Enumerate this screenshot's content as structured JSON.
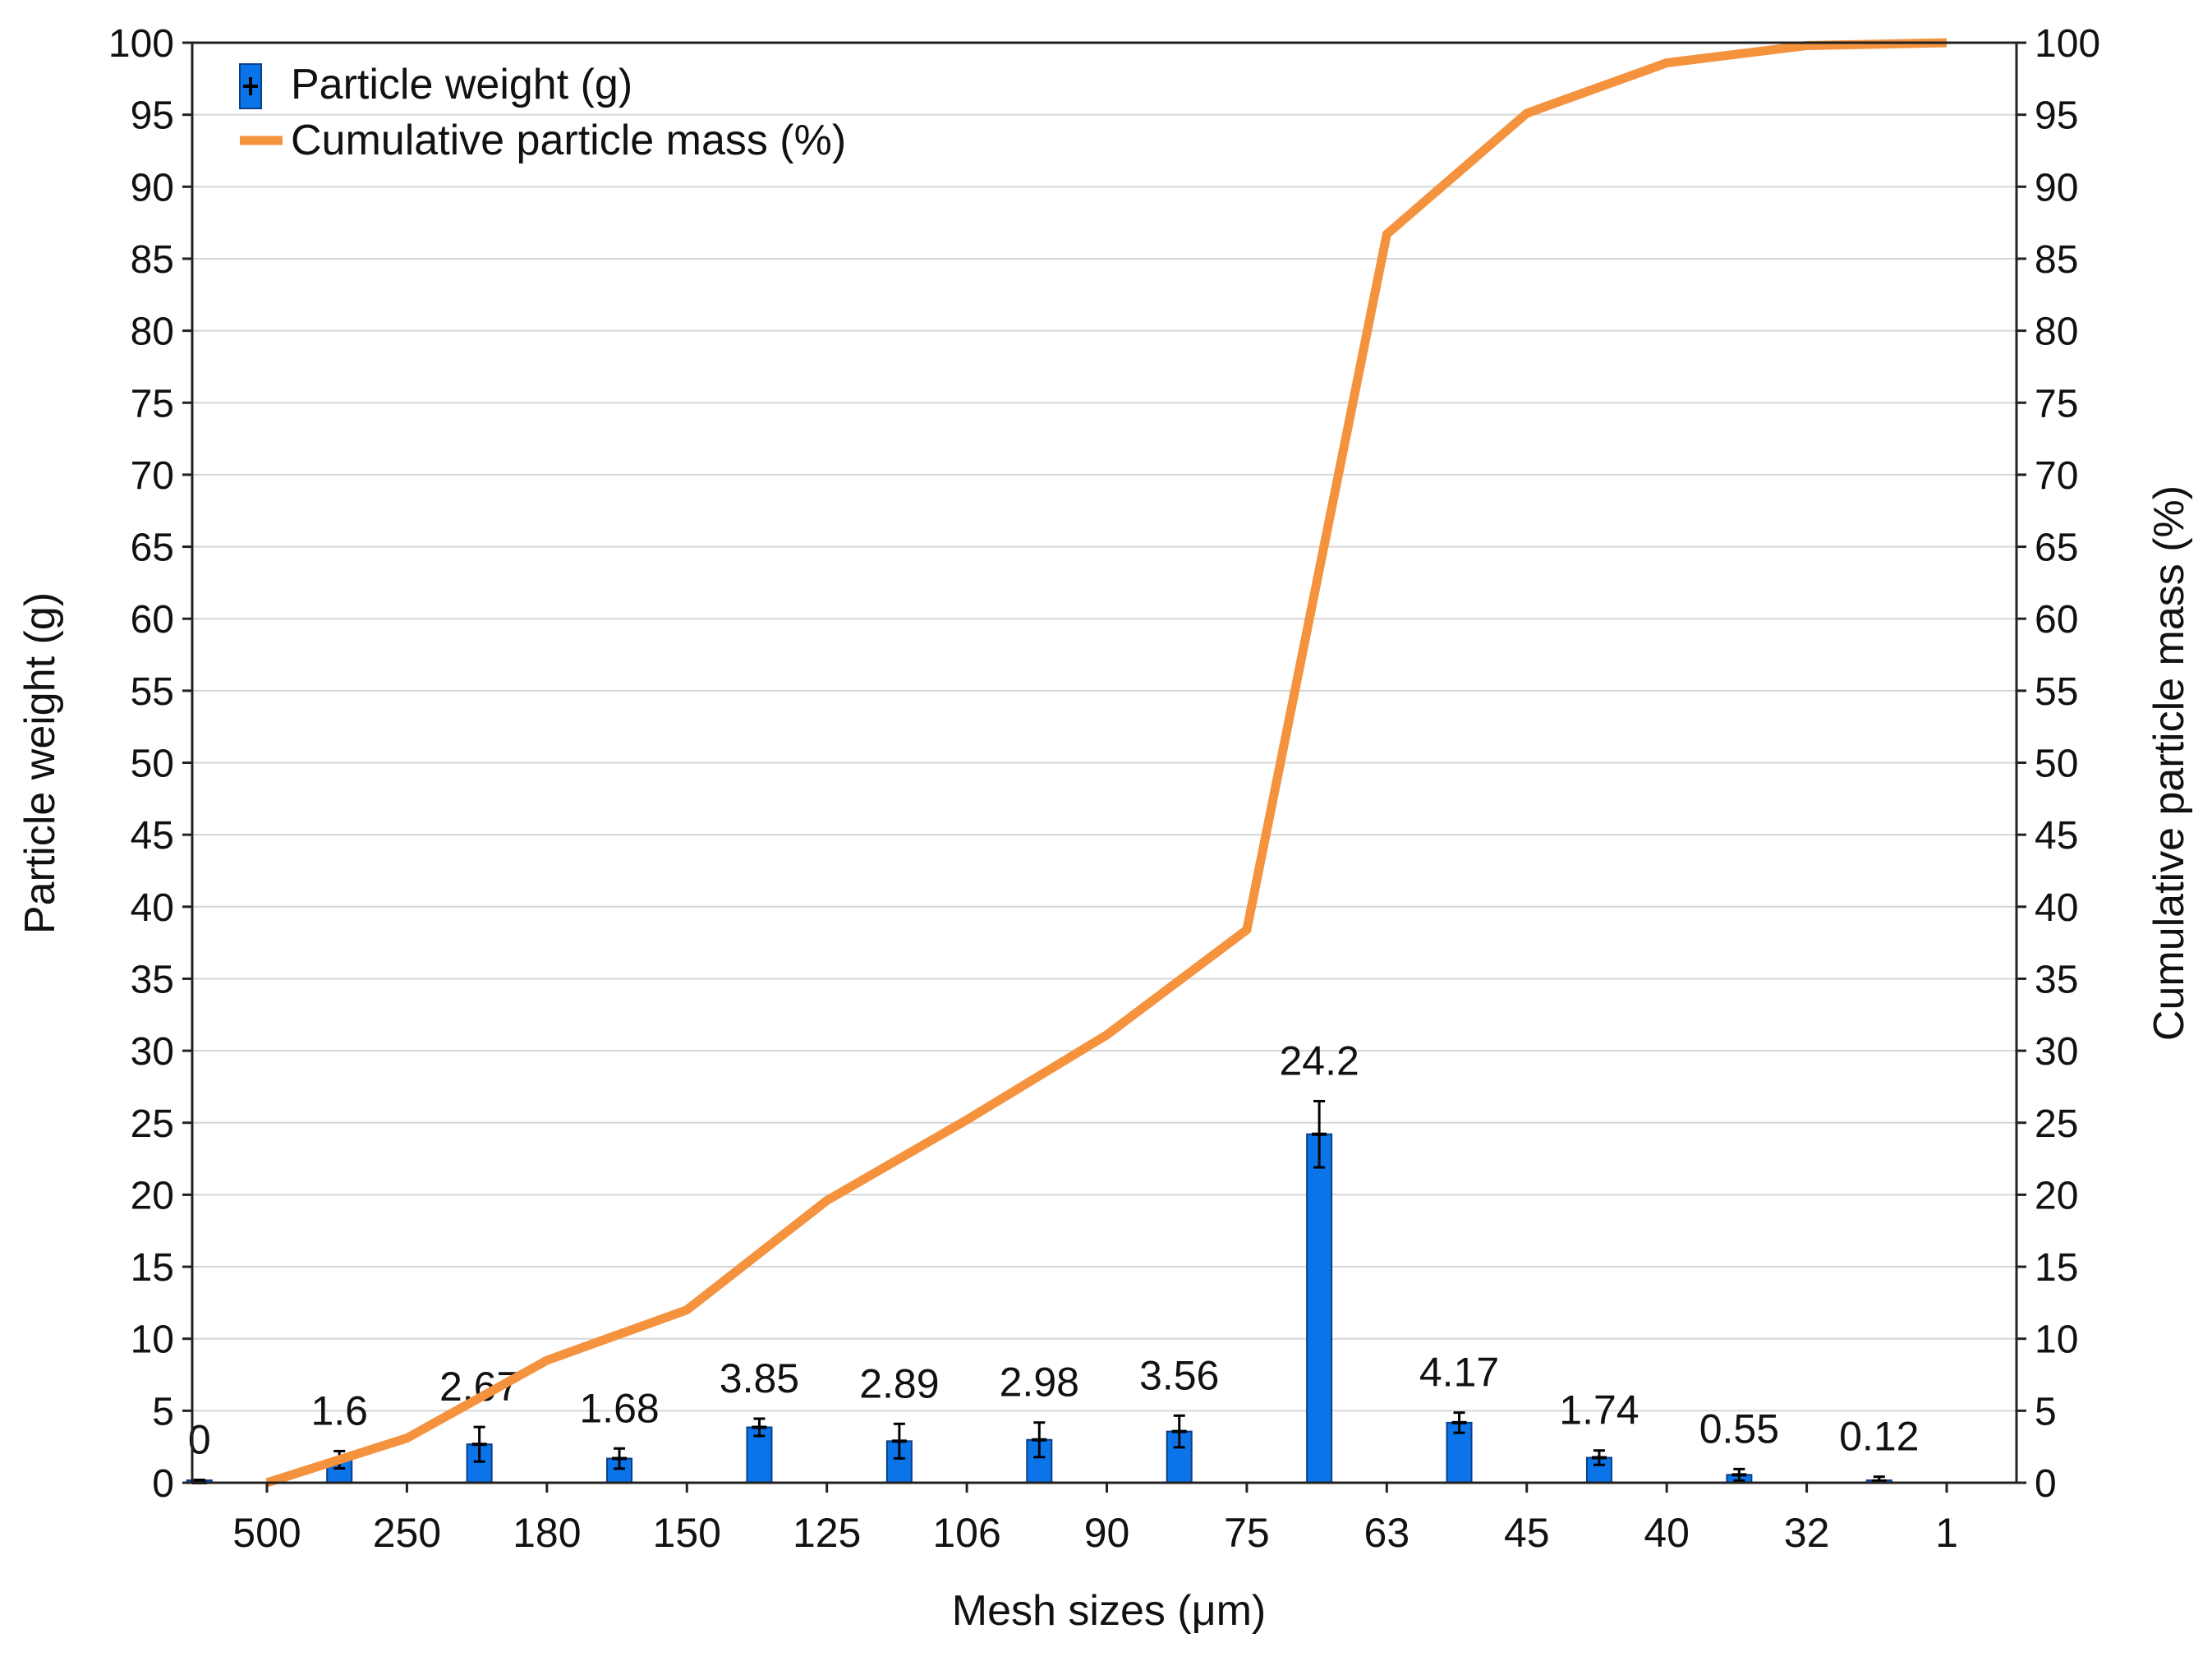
{
  "chart_data": {
    "type": "bar+line",
    "title": "",
    "xlabel": "Mesh sizes (μm)",
    "ylabel": "Particle weight (g)",
    "y2label": "Cumulative particle mass (%)",
    "categories": [
      "500",
      "250",
      "180",
      "150",
      "125",
      "106",
      "90",
      "75",
      "63",
      "45",
      "40",
      "32",
      "1"
    ],
    "ylim": [
      0,
      100
    ],
    "y2lim": [
      0,
      100
    ],
    "yticks": [
      0,
      5,
      10,
      15,
      20,
      25,
      30,
      35,
      40,
      45,
      50,
      55,
      60,
      65,
      70,
      75,
      80,
      85,
      90,
      95,
      100
    ],
    "grid": true,
    "legend_position": "top-left",
    "series": [
      {
        "name": "Particle weight (g)",
        "type": "bar",
        "axis": "left",
        "color": "#0a74e8",
        "values": [
          0,
          1.6,
          2.67,
          1.68,
          3.85,
          2.89,
          2.98,
          3.56,
          24.2,
          4.17,
          1.74,
          0.55,
          0.12
        ],
        "labels": [
          "0",
          "1.6",
          "2.67",
          "1.68",
          "3.85",
          "2.89",
          "2.98",
          "3.56",
          "24.2",
          "4.17",
          "1.74",
          "0.55",
          "0.12"
        ],
        "errors": [
          0.2,
          0.6,
          1.2,
          0.7,
          0.6,
          1.2,
          1.2,
          1.1,
          2.3,
          0.7,
          0.5,
          0.4,
          0.3
        ]
      },
      {
        "name": "Cumulative particle mass (%)",
        "type": "line",
        "axis": "right",
        "color": "#f5923e",
        "values": [
          0,
          3.1,
          8.5,
          12,
          19.6,
          25.2,
          31.1,
          38.4,
          86.7,
          95.1,
          98.6,
          99.8,
          100
        ]
      }
    ]
  }
}
